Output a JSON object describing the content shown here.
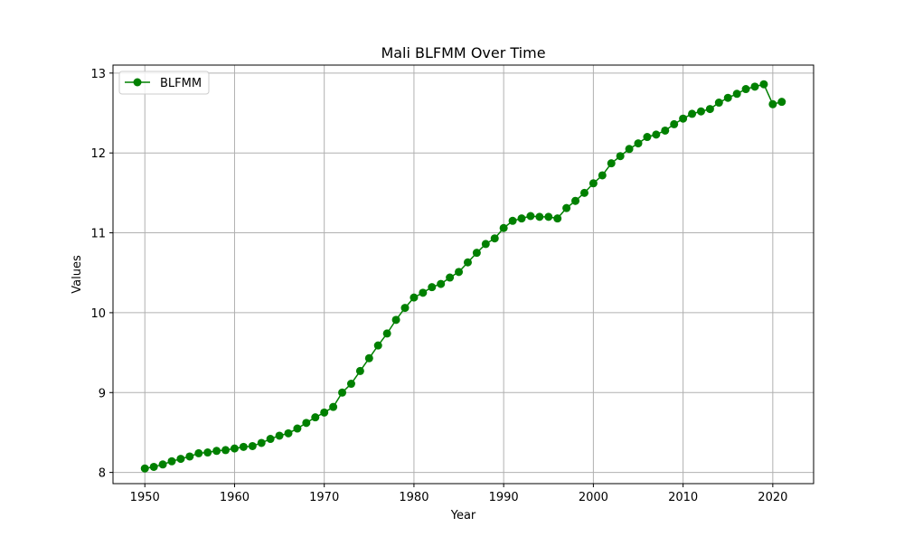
{
  "chart_data": {
    "type": "line",
    "title": "Mali BLFMM Over Time",
    "xlabel": "Year",
    "ylabel": "Values",
    "xlim": [
      1946.45,
      2024.55
    ],
    "ylim": [
      7.86,
      13.1
    ],
    "xticks": [
      1950,
      1960,
      1970,
      1980,
      1990,
      2000,
      2010,
      2020
    ],
    "yticks": [
      8,
      9,
      10,
      11,
      12,
      13
    ],
    "grid": true,
    "legend_position": "top-left",
    "series": [
      {
        "name": "BLFMM",
        "color": "#008000",
        "marker": "circle",
        "x": [
          1950,
          1951,
          1952,
          1953,
          1954,
          1955,
          1956,
          1957,
          1958,
          1959,
          1960,
          1961,
          1962,
          1963,
          1964,
          1965,
          1966,
          1967,
          1968,
          1969,
          1970,
          1971,
          1972,
          1973,
          1974,
          1975,
          1976,
          1977,
          1978,
          1979,
          1980,
          1981,
          1982,
          1983,
          1984,
          1985,
          1986,
          1987,
          1988,
          1989,
          1990,
          1991,
          1992,
          1993,
          1994,
          1995,
          1996,
          1997,
          1998,
          1999,
          2000,
          2001,
          2002,
          2003,
          2004,
          2005,
          2006,
          2007,
          2008,
          2009,
          2010,
          2011,
          2012,
          2013,
          2014,
          2015,
          2016,
          2017,
          2018,
          2019,
          2020,
          2021
        ],
        "y": [
          8.05,
          8.07,
          8.1,
          8.14,
          8.17,
          8.2,
          8.24,
          8.25,
          8.27,
          8.28,
          8.3,
          8.32,
          8.33,
          8.37,
          8.42,
          8.46,
          8.49,
          8.55,
          8.62,
          8.69,
          8.75,
          8.82,
          9.0,
          9.11,
          9.27,
          9.43,
          9.59,
          9.74,
          9.91,
          10.06,
          10.19,
          10.25,
          10.32,
          10.36,
          10.44,
          10.51,
          10.63,
          10.75,
          10.86,
          10.93,
          11.06,
          11.15,
          11.18,
          11.21,
          11.2,
          11.2,
          11.18,
          11.31,
          11.4,
          11.5,
          11.62,
          11.72,
          11.87,
          11.96,
          12.05,
          12.12,
          12.2,
          12.23,
          12.28,
          12.36,
          12.43,
          12.49,
          12.52,
          12.55,
          12.63,
          12.69,
          12.74,
          12.8,
          12.83,
          12.86,
          12.61,
          12.64
        ]
      }
    ]
  }
}
